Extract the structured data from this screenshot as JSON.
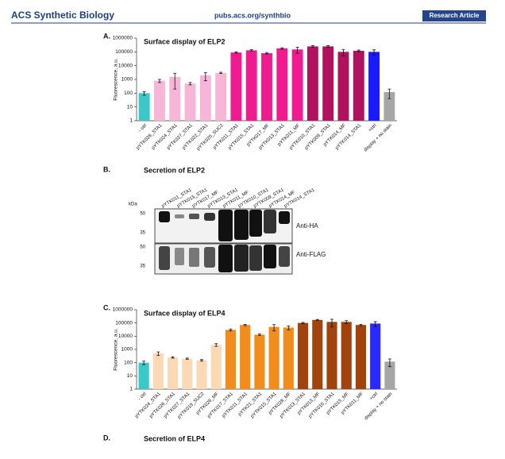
{
  "header": {
    "journal": "ACS Synthetic Biology",
    "url": "pubs.acs.org/synthbio",
    "article_type": "Research Article"
  },
  "chart_data": [
    {
      "type": "bar",
      "panel": "A.",
      "title": "Surface display of ELP2",
      "y_label": "Fluorescence, a.u.",
      "log_scale": true,
      "ylim": [
        1,
        1000000
      ],
      "yticks": [
        1,
        10,
        100,
        1000,
        10000,
        100000,
        1000000
      ],
      "categories": [
        "- ctrl",
        "pYTK026_STA1",
        "pYTK024_STA1",
        "pYTK027_STA1",
        "pYTK022_STA1",
        "pYTK020_SUC2",
        "pYTK011_STA1",
        "pYTK015_STA1",
        "pYTK017_MF",
        "pYTK013_STA1",
        "pYTK011_MF",
        "pYTK010_STA1",
        "pYTK009_STA1",
        "pYTK014_MF",
        "pYTK014_STA1",
        "+ctrl",
        "display + no stain"
      ],
      "values": [
        100,
        800,
        1500,
        500,
        2000,
        3000,
        90000,
        130000,
        80000,
        180000,
        150000,
        250000,
        250000,
        100000,
        120000,
        100000,
        120
      ],
      "errors": [
        30,
        200,
        1300,
        100,
        1200,
        300,
        10000,
        15000,
        10000,
        20000,
        70000,
        30000,
        30000,
        50000,
        15000,
        40000,
        80
      ],
      "colors": [
        "#3cc8c8",
        "#f7b6d8",
        "#f7b6d8",
        "#f7b6d8",
        "#f7b6d8",
        "#f7b6d8",
        "#ee1c8e",
        "#ee1c8e",
        "#ee1c8e",
        "#ee1c8e",
        "#ee1c8e",
        "#b0125e",
        "#b0125e",
        "#b0125e",
        "#b0125e",
        "#1a1aff",
        "#a6a6a6"
      ]
    },
    {
      "type": "bar",
      "panel": "C.",
      "title": "Surface display of ELP4",
      "y_label": "Fluorescence, a.u.",
      "log_scale": true,
      "ylim": [
        1,
        1000000
      ],
      "yticks": [
        1,
        10,
        100,
        1000,
        10000,
        100000,
        1000000
      ],
      "categories": [
        "- ctrl",
        "pYTK024_STA1",
        "pYTK026_STA1",
        "pYTK027_STA1",
        "pYTK019_SUC2",
        "pYTK026_MF",
        "pYTK017_STA1",
        "pYTK011_STA1",
        "pYTK21_STA1",
        "pYTK015_STA1",
        "pYTK028_MF",
        "pYTK013_STA1",
        "pYTK013_MF",
        "pYTK010_STA1",
        "pYTK015_MF",
        "pYTK011_MF",
        "+ctrl",
        "display + no stain"
      ],
      "values": [
        100,
        500,
        250,
        200,
        150,
        2200,
        30000,
        70000,
        13000,
        50000,
        45000,
        100000,
        170000,
        120000,
        120000,
        70000,
        90000,
        120
      ],
      "errors": [
        30,
        150,
        30,
        20,
        20,
        500,
        5000,
        8000,
        2000,
        25000,
        15000,
        10000,
        15000,
        70000,
        30000,
        8000,
        35000,
        70
      ],
      "colors": [
        "#3cc8c8",
        "#fbd9b5",
        "#fbd9b5",
        "#fbd9b5",
        "#fbd9b5",
        "#fbd9b5",
        "#f28c1c",
        "#f28c1c",
        "#f28c1c",
        "#f28c1c",
        "#f28c1c",
        "#a2430d",
        "#a2430d",
        "#a2430d",
        "#a2430d",
        "#a2430d",
        "#2a2aff",
        "#a6a6a6"
      ]
    }
  ],
  "blot": {
    "panel": "B.",
    "title": "Secretion of ELP2",
    "lanes": [
      "pYTK011_STA1",
      "pYTK015_STA1",
      "pYTK017_MF",
      "pYTK013_STA1",
      "pYTK011_MF",
      "pYTK010_STA1",
      "pYTK009_STA1",
      "pYTK014_MF",
      "pYTK014_STA1"
    ],
    "kda": "kDa",
    "markers": [
      "50",
      "35"
    ],
    "antibodies": [
      "Anti-HA",
      "Anti-FLAG"
    ]
  },
  "panel_d": {
    "panel": "D.",
    "title": "Secretion of ELP4"
  }
}
